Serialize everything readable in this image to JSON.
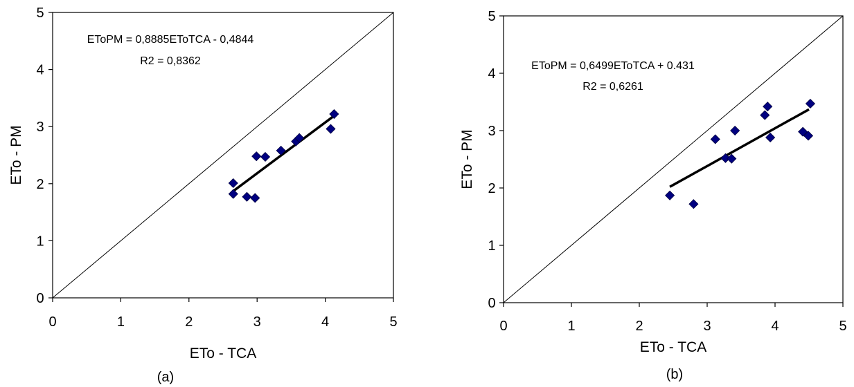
{
  "chart_data": [
    {
      "type": "scatter",
      "panel_label": "(a)",
      "xlabel": "ETo - TCA",
      "ylabel": "ETo - PM",
      "xlim": [
        0,
        5
      ],
      "ylim": [
        0,
        5
      ],
      "x_ticks": [
        "0",
        "1",
        "2",
        "3",
        "4",
        "5"
      ],
      "y_ticks": [
        "0",
        "1",
        "2",
        "3",
        "4",
        "5"
      ],
      "equation": "EToPM = 0,8885EToTCA - 0,4844",
      "r2": "R2 = 0,8362",
      "marker_color": "#000080",
      "reference_line": {
        "x": [
          0,
          5
        ],
        "y": [
          0,
          5
        ]
      },
      "trendline": {
        "x": [
          2.65,
          4.12
        ],
        "y": [
          1.87,
          3.18
        ]
      },
      "points": [
        {
          "x": 2.65,
          "y": 2.01
        },
        {
          "x": 2.65,
          "y": 1.82
        },
        {
          "x": 2.85,
          "y": 1.77
        },
        {
          "x": 2.97,
          "y": 1.75
        },
        {
          "x": 2.99,
          "y": 2.48
        },
        {
          "x": 3.12,
          "y": 2.47
        },
        {
          "x": 3.35,
          "y": 2.58
        },
        {
          "x": 3.57,
          "y": 2.74
        },
        {
          "x": 3.62,
          "y": 2.8
        },
        {
          "x": 4.08,
          "y": 2.96
        },
        {
          "x": 4.13,
          "y": 3.22
        }
      ]
    },
    {
      "type": "scatter",
      "panel_label": "(b)",
      "xlabel": "ETo - TCA",
      "ylabel": "ETo - PM",
      "xlim": [
        0,
        5
      ],
      "ylim": [
        0,
        5
      ],
      "x_ticks": [
        "0",
        "1",
        "2",
        "3",
        "4",
        "5"
      ],
      "y_ticks": [
        "0",
        "1",
        "2",
        "3",
        "4",
        "5"
      ],
      "equation": "EToPM = 0,6499EToTCA + 0.431",
      "r2": "R2 = 0,6261",
      "marker_color": "#000080",
      "reference_line": {
        "x": [
          0,
          5
        ],
        "y": [
          0,
          5
        ]
      },
      "trendline": {
        "x": [
          2.45,
          4.5
        ],
        "y": [
          2.02,
          3.37
        ]
      },
      "points": [
        {
          "x": 2.45,
          "y": 1.87
        },
        {
          "x": 2.8,
          "y": 1.72
        },
        {
          "x": 3.12,
          "y": 2.85
        },
        {
          "x": 3.27,
          "y": 2.52
        },
        {
          "x": 3.36,
          "y": 2.51
        },
        {
          "x": 3.41,
          "y": 3.0
        },
        {
          "x": 3.85,
          "y": 3.27
        },
        {
          "x": 3.89,
          "y": 3.42
        },
        {
          "x": 3.93,
          "y": 2.88
        },
        {
          "x": 4.41,
          "y": 2.98
        },
        {
          "x": 4.49,
          "y": 2.91
        },
        {
          "x": 4.52,
          "y": 3.47
        }
      ]
    }
  ]
}
